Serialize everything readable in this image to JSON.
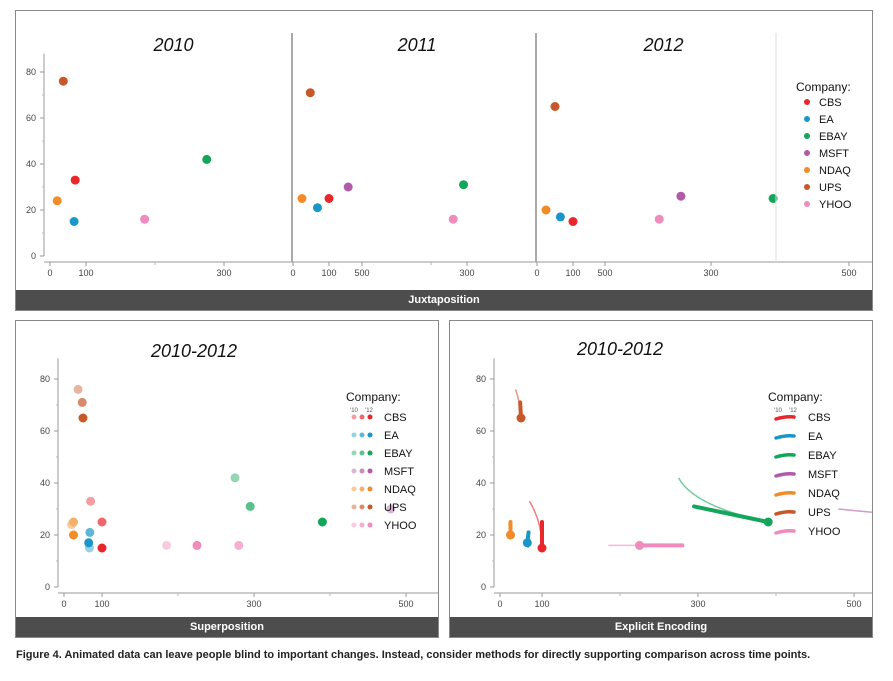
{
  "caption": "Figure 4. Animated data can leave people blind to important changes. Instead, consider methods for directly supporting comparison across time points.",
  "legend": {
    "title": "Company:",
    "year_labels": [
      "'10",
      "'12"
    ]
  },
  "panels": {
    "juxtaposition": {
      "label": "Juxtaposition",
      "titles": [
        "2010",
        "2011",
        "2012"
      ]
    },
    "superposition": {
      "label": "Superposition",
      "title": "2010-2012"
    },
    "explicit": {
      "label": "Explicit Encoding",
      "title": "2010-2012"
    }
  },
  "colors": {
    "CBS": "#e8262b",
    "EA": "#1a97c8",
    "EBAY": "#13a65a",
    "MSFT": "#b05aa8",
    "NDAQ": "#f28c28",
    "UPS": "#c8582a",
    "YHOO": "#f08bbd"
  },
  "chart_data": [
    {
      "type": "scatter",
      "title": "2010",
      "xticks": [
        "0",
        "100",
        "300",
        "500"
      ],
      "yticks": [
        "0",
        "20",
        "40",
        "60",
        "80"
      ],
      "ylim": [
        0,
        90
      ],
      "series": [
        {
          "name": "CBS",
          "x": 70,
          "y": 33
        },
        {
          "name": "EA",
          "x": 67,
          "y": 15
        },
        {
          "name": "EBAY",
          "x": 275,
          "y": 42
        },
        {
          "name": "MSFT",
          "x": 480,
          "y": 30
        },
        {
          "name": "NDAQ",
          "x": 20,
          "y": 24
        },
        {
          "name": "UPS",
          "x": 37,
          "y": 76
        },
        {
          "name": "YHOO",
          "x": 185,
          "y": 16
        }
      ]
    },
    {
      "type": "scatter",
      "title": "2011",
      "xticks": [
        "0",
        "100",
        "300",
        "500"
      ],
      "yticks": [
        "0",
        "20",
        "40",
        "60",
        "80"
      ],
      "ylim": [
        0,
        90
      ],
      "series": [
        {
          "name": "CBS",
          "x": 100,
          "y": 25
        },
        {
          "name": "EA",
          "x": 68,
          "y": 21
        },
        {
          "name": "EBAY",
          "x": 295,
          "y": 31
        },
        {
          "name": "MSFT",
          "x": 610,
          "y": 26
        },
        {
          "name": "NDAQ",
          "x": 25,
          "y": 25
        },
        {
          "name": "UPS",
          "x": 48,
          "y": 71
        },
        {
          "name": "YHOO",
          "x": 280,
          "y": 16
        }
      ]
    },
    {
      "type": "scatter",
      "title": "2012",
      "xticks": [
        "0",
        "100",
        "300",
        "500"
      ],
      "yticks": [
        "0",
        "20",
        "40",
        "60",
        "80"
      ],
      "ylim": [
        0,
        90
      ],
      "series": [
        {
          "name": "CBS",
          "x": 100,
          "y": 15
        },
        {
          "name": "EA",
          "x": 65,
          "y": 17
        },
        {
          "name": "EBAY",
          "x": 390,
          "y": 25
        },
        {
          "name": "MSFT",
          "x": 645,
          "y": 27
        },
        {
          "name": "NDAQ",
          "x": 25,
          "y": 20
        },
        {
          "name": "UPS",
          "x": 50,
          "y": 65
        },
        {
          "name": "YHOO",
          "x": 225,
          "y": 16
        }
      ]
    },
    {
      "type": "scatter",
      "title": "2010-2012",
      "xticks": [
        "0",
        "100",
        "300",
        "500"
      ],
      "yticks": [
        "0",
        "20",
        "40",
        "60",
        "80"
      ],
      "ylim": [
        0,
        90
      ],
      "series": [
        {
          "name": "CBS",
          "points": [
            {
              "year": "2010",
              "x": 70,
              "y": 33
            },
            {
              "year": "2011",
              "x": 100,
              "y": 25
            },
            {
              "year": "2012",
              "x": 100,
              "y": 15
            }
          ]
        },
        {
          "name": "EA",
          "points": [
            {
              "year": "2010",
              "x": 67,
              "y": 15
            },
            {
              "year": "2011",
              "x": 68,
              "y": 21
            },
            {
              "year": "2012",
              "x": 65,
              "y": 17
            }
          ]
        },
        {
          "name": "EBAY",
          "points": [
            {
              "year": "2010",
              "x": 275,
              "y": 42
            },
            {
              "year": "2011",
              "x": 295,
              "y": 31
            },
            {
              "year": "2012",
              "x": 390,
              "y": 25
            }
          ]
        },
        {
          "name": "MSFT",
          "points": [
            {
              "year": "2010",
              "x": 480,
              "y": 30
            },
            {
              "year": "2011",
              "x": 610,
              "y": 26
            },
            {
              "year": "2012",
              "x": 645,
              "y": 27
            }
          ]
        },
        {
          "name": "NDAQ",
          "points": [
            {
              "year": "2010",
              "x": 20,
              "y": 24
            },
            {
              "year": "2011",
              "x": 25,
              "y": 25
            },
            {
              "year": "2012",
              "x": 25,
              "y": 20
            }
          ]
        },
        {
          "name": "UPS",
          "points": [
            {
              "year": "2010",
              "x": 37,
              "y": 76
            },
            {
              "year": "2011",
              "x": 48,
              "y": 71
            },
            {
              "year": "2012",
              "x": 50,
              "y": 65
            }
          ]
        },
        {
          "name": "YHOO",
          "points": [
            {
              "year": "2010",
              "x": 185,
              "y": 16
            },
            {
              "year": "2011",
              "x": 280,
              "y": 16
            },
            {
              "year": "2012",
              "x": 225,
              "y": 16
            }
          ]
        }
      ]
    },
    {
      "type": "line",
      "title": "2010-2012",
      "xticks": [
        "0",
        "100",
        "300",
        "500"
      ],
      "yticks": [
        "0",
        "20",
        "40",
        "60",
        "80"
      ],
      "ylim": [
        0,
        90
      ],
      "series": [
        {
          "name": "CBS",
          "points": [
            {
              "x": 70,
              "y": 33
            },
            {
              "x": 100,
              "y": 25
            },
            {
              "x": 100,
              "y": 15
            }
          ]
        },
        {
          "name": "EA",
          "points": [
            {
              "x": 67,
              "y": 15
            },
            {
              "x": 68,
              "y": 21
            },
            {
              "x": 65,
              "y": 17
            }
          ]
        },
        {
          "name": "EBAY",
          "points": [
            {
              "x": 275,
              "y": 42
            },
            {
              "x": 295,
              "y": 31
            },
            {
              "x": 390,
              "y": 25
            }
          ]
        },
        {
          "name": "MSFT",
          "points": [
            {
              "x": 480,
              "y": 30
            },
            {
              "x": 610,
              "y": 26
            },
            {
              "x": 645,
              "y": 27
            }
          ]
        },
        {
          "name": "NDAQ",
          "points": [
            {
              "x": 20,
              "y": 24
            },
            {
              "x": 25,
              "y": 25
            },
            {
              "x": 25,
              "y": 20
            }
          ]
        },
        {
          "name": "UPS",
          "points": [
            {
              "x": 37,
              "y": 76
            },
            {
              "x": 48,
              "y": 71
            },
            {
              "x": 50,
              "y": 65
            }
          ]
        },
        {
          "name": "YHOO",
          "points": [
            {
              "x": 185,
              "y": 16
            },
            {
              "x": 280,
              "y": 16
            },
            {
              "x": 225,
              "y": 16
            }
          ]
        }
      ]
    }
  ]
}
